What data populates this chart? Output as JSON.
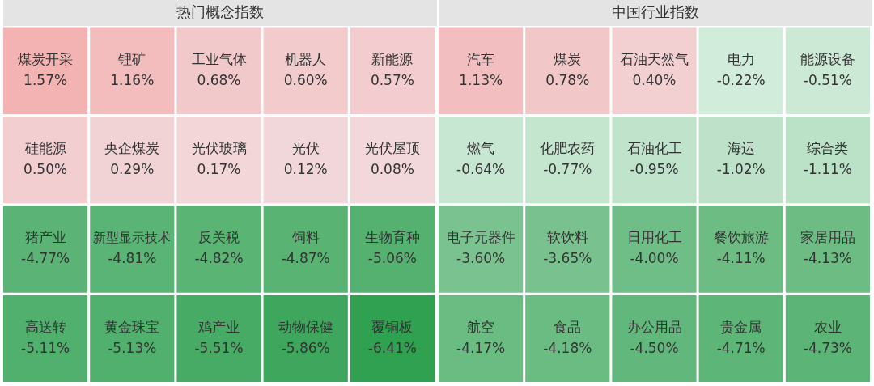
{
  "chart_data": [
    {
      "type": "other",
      "title": "热门概念指数",
      "categories": [
        "煤炭开采",
        "锂矿",
        "工业气体",
        "机器人",
        "新能源",
        "硅能源",
        "央企煤炭",
        "光伏玻璃",
        "光伏",
        "光伏屋顶",
        "猪产业",
        "新型显示技术",
        "反关税",
        "饲料",
        "生物育种",
        "高送转",
        "黄金珠宝",
        "鸡产业",
        "动物保健",
        "覆铜板"
      ],
      "values": [
        1.57,
        1.16,
        0.68,
        0.6,
        0.57,
        0.5,
        0.29,
        0.17,
        0.12,
        0.08,
        -4.77,
        -4.81,
        -4.82,
        -4.87,
        -5.06,
        -5.11,
        -5.13,
        -5.51,
        -5.86,
        -6.41
      ],
      "value_labels": [
        "1.57%",
        "1.16%",
        "0.68%",
        "0.60%",
        "0.57%",
        "0.50%",
        "0.29%",
        "0.17%",
        "0.12%",
        "0.08%",
        "-4.77%",
        "-4.81%",
        "-4.82%",
        "-4.87%",
        "-5.06%",
        "-5.11%",
        "-5.13%",
        "-5.51%",
        "-5.86%",
        "-6.41%"
      ]
    },
    {
      "type": "other",
      "title": "中国行业指数",
      "categories": [
        "汽车",
        "煤炭",
        "石油天然气",
        "电力",
        "能源设备",
        "燃气",
        "化肥农药",
        "石油化工",
        "海运",
        "综合类",
        "电子元器件",
        "软饮料",
        "日用化工",
        "餐饮旅游",
        "家居用品",
        "航空",
        "食品",
        "办公用品",
        "贵金属",
        "农业"
      ],
      "values": [
        1.13,
        0.78,
        0.4,
        -0.22,
        -0.51,
        -0.64,
        -0.77,
        -0.95,
        -1.02,
        -1.11,
        -3.6,
        -3.65,
        -4.0,
        -4.11,
        -4.13,
        -4.17,
        -4.18,
        -4.5,
        -4.71,
        -4.73
      ],
      "value_labels": [
        "1.13%",
        "0.78%",
        "0.40%",
        "-0.22%",
        "-0.51%",
        "-0.64%",
        "-0.77%",
        "-0.95%",
        "-1.02%",
        "-1.11%",
        "-3.60%",
        "-3.65%",
        "-4.00%",
        "-4.11%",
        "-4.13%",
        "-4.17%",
        "-4.18%",
        "-4.50%",
        "-4.71%",
        "-4.73%"
      ]
    }
  ]
}
